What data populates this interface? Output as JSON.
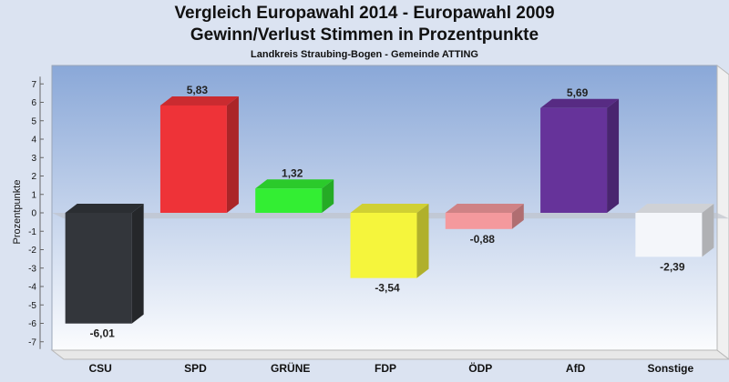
{
  "chart_data": {
    "type": "bar",
    "title": "Vergleich Europawahl 2014 - Europawahl 2009",
    "subtitle": "Gewinn/Verlust Stimmen in Prozentpunkte",
    "subsubtitle": "Landkreis Straubing-Bogen - Gemeinde ATTING",
    "ylabel": "Prozentpunkte",
    "ylim": [
      -7,
      7
    ],
    "yticks": [
      "7",
      "6",
      "5",
      "4",
      "3",
      "2",
      "1",
      "0",
      "-1",
      "-2",
      "-3",
      "-4",
      "-5",
      "-6",
      "-7"
    ],
    "categories": [
      "CSU",
      "SPD",
      "GRÜNE",
      "FDP",
      "ÖDP",
      "AfD",
      "Sonstige"
    ],
    "values": [
      -6.01,
      5.83,
      1.32,
      -3.54,
      -0.88,
      5.69,
      -2.39
    ],
    "value_labels": [
      "-6,01",
      "5,83",
      "1,32",
      "-3,54",
      "-0,88",
      "5,69",
      "-2,39"
    ],
    "colors": [
      "#33363b",
      "#ee3338",
      "#33ee33",
      "#f5f53c",
      "#f4999d",
      "#66339a",
      "#f4f6fa"
    ],
    "grid": false,
    "legend": "none"
  }
}
